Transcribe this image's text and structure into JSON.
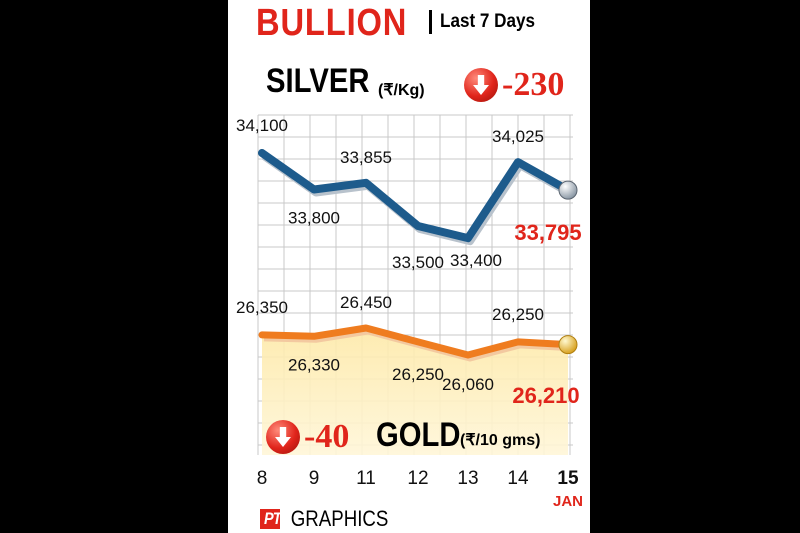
{
  "title": "BULLION",
  "subtitle": "Last 7 Days",
  "silver": {
    "name": "SILVER",
    "unit": "(₹/Kg)",
    "change": "-230",
    "latest_label": "33,795"
  },
  "gold": {
    "name": "GOLD",
    "unit": "(₹/10 gms)",
    "change": "-40",
    "latest_label": "26,210"
  },
  "month": "JAN",
  "credit": {
    "brand": "PTI",
    "text": "GRAPHICS"
  },
  "colors": {
    "silver_line": "#1d5b8c",
    "gold_line": "#ef7c1f",
    "accent_red": "#e0251b"
  },
  "chart_data": {
    "type": "line",
    "title": "BULLION",
    "subtitle": "Last 7 Days",
    "categories": [
      "8",
      "9",
      "11",
      "12",
      "13",
      "14",
      "15"
    ],
    "series": [
      {
        "name": "SILVER",
        "unit": "(₹/Kg)",
        "values": [
          34100,
          33800,
          33855,
          33500,
          33400,
          34025,
          33795
        ],
        "labels": [
          "34,100",
          "33,800",
          "33,855",
          "33,500",
          "33,400",
          "34,025",
          "33,795"
        ]
      },
      {
        "name": "GOLD",
        "unit": "(₹/10 gms)",
        "values": [
          26350,
          26330,
          26450,
          26250,
          26060,
          26250,
          26210
        ],
        "labels": [
          "26,350",
          "26,330",
          "26,450",
          "26,250",
          "26,060",
          "26,250",
          "26,210"
        ]
      }
    ],
    "grid": true
  }
}
